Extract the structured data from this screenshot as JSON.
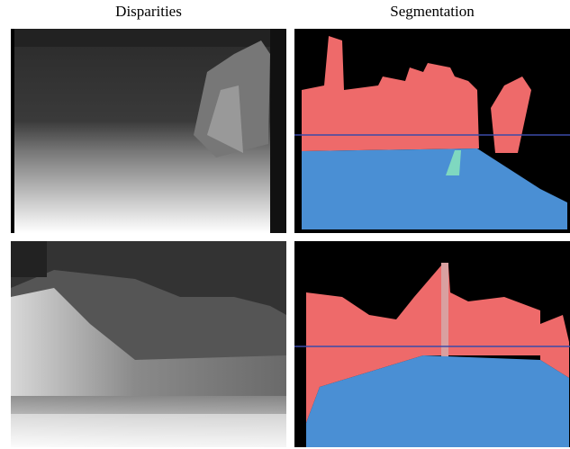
{
  "figure": {
    "columns": [
      "Disparities",
      "Segmentation"
    ]
  }
}
